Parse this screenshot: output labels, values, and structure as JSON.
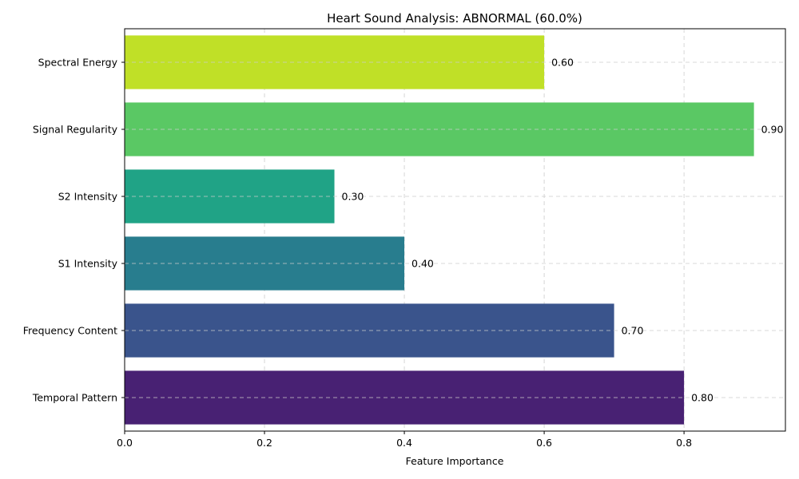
{
  "chart_data": {
    "type": "bar",
    "orientation": "horizontal",
    "title": "Heart Sound Analysis: ABNORMAL (60.0%)",
    "xlabel": "Feature Importance",
    "ylabel": "",
    "xlim": [
      0,
      0.945
    ],
    "xticks": [
      0.0,
      0.2,
      0.4,
      0.6,
      0.8
    ],
    "xtick_labels": [
      "0.0",
      "0.2",
      "0.4",
      "0.6",
      "0.8"
    ],
    "grid": true,
    "categories": [
      "Temporal Pattern",
      "Frequency Content",
      "S1 Intensity",
      "S2 Intensity",
      "Signal Regularity",
      "Spectral Energy"
    ],
    "values": [
      0.8,
      0.7,
      0.4,
      0.3,
      0.9,
      0.6
    ],
    "value_labels": [
      "0.80",
      "0.70",
      "0.40",
      "0.30",
      "0.90",
      "0.60"
    ],
    "colors": [
      "#482173",
      "#3a548c",
      "#287d8e",
      "#20a386",
      "#5ac864",
      "#c0e027"
    ]
  }
}
